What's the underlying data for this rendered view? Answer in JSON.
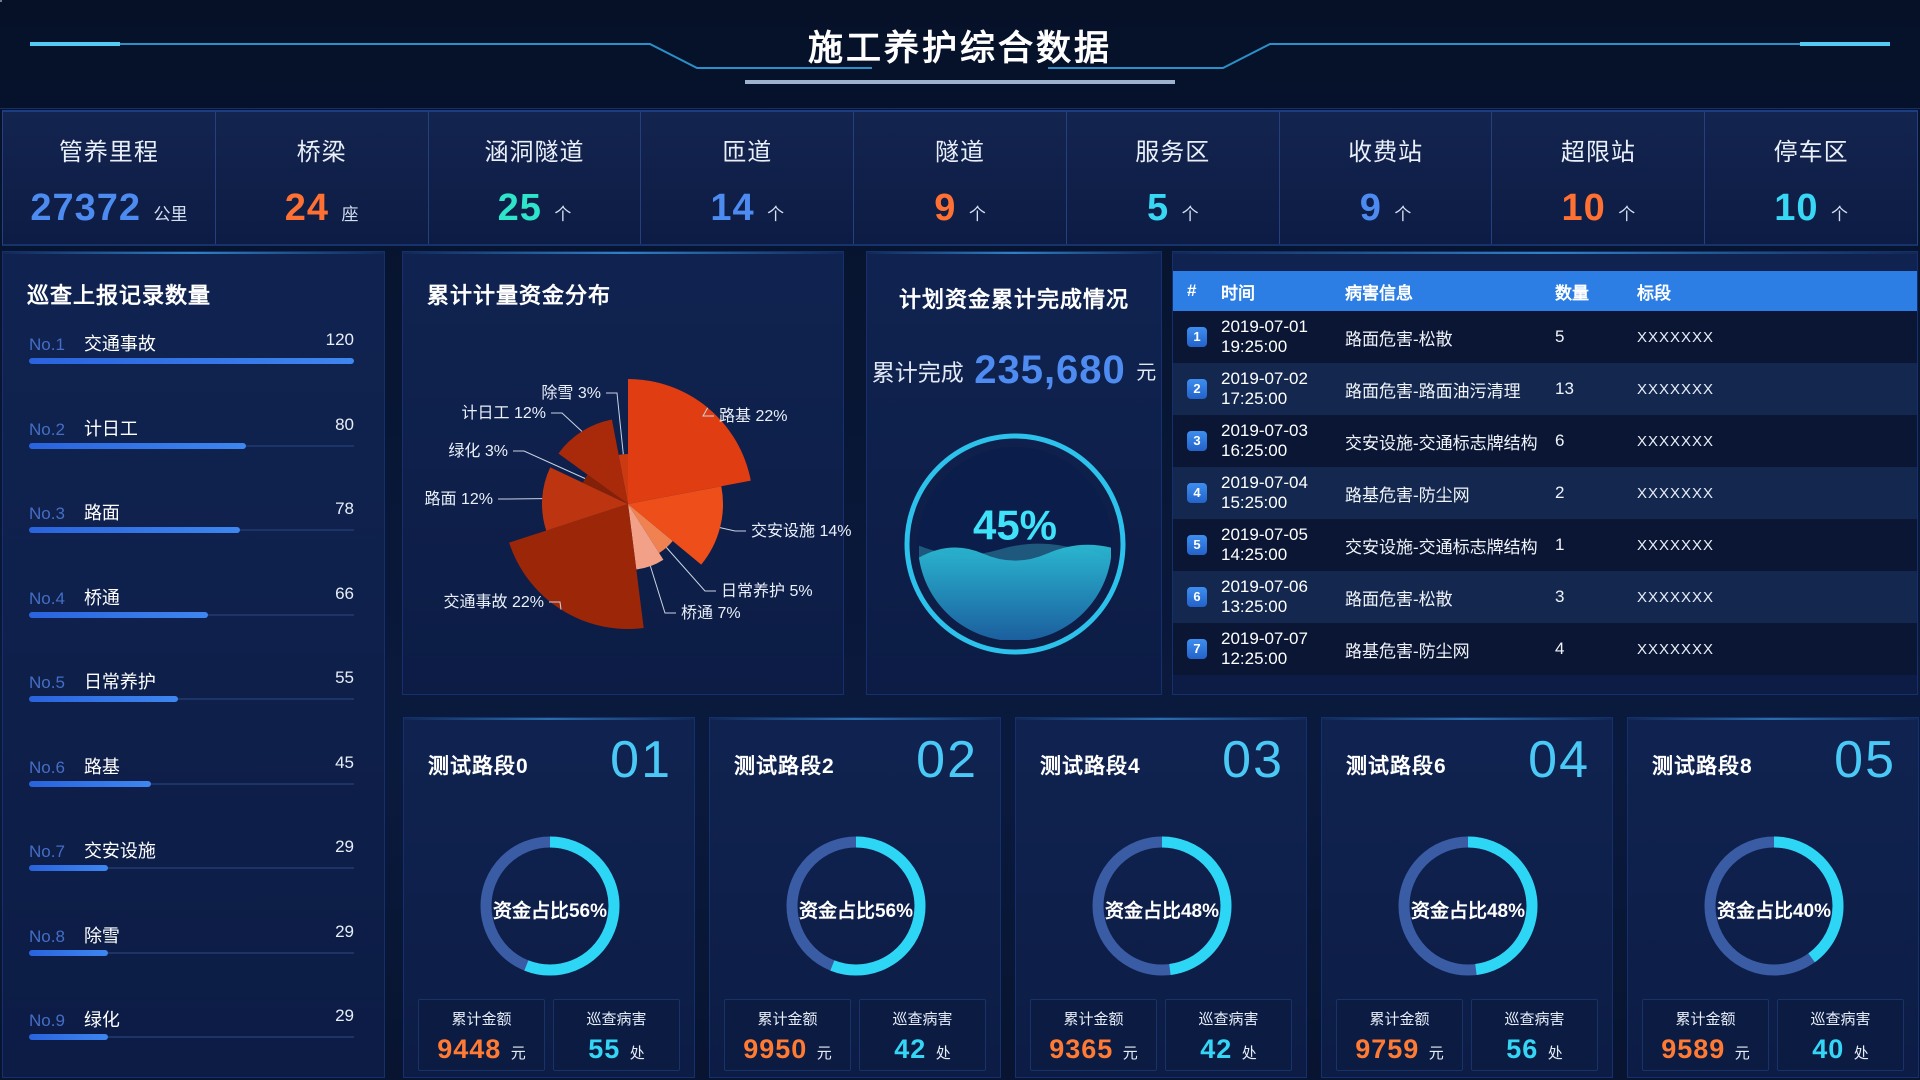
{
  "header": {
    "title": "施工养护综合数据"
  },
  "stats": [
    {
      "label": "管养里程",
      "value": "27372",
      "unit": "公里",
      "color": "#4d8bf0"
    },
    {
      "label": "桥梁",
      "value": "24",
      "unit": "座",
      "color": "#ff7033"
    },
    {
      "label": "涵洞隧道",
      "value": "25",
      "unit": "个",
      "color": "#2ee5c9"
    },
    {
      "label": "匝道",
      "value": "14",
      "unit": "个",
      "color": "#4d8bf0"
    },
    {
      "label": "隧道",
      "value": "9",
      "unit": "个",
      "color": "#ff7033"
    },
    {
      "label": "服务区",
      "value": "5",
      "unit": "个",
      "color": "#38d8f5"
    },
    {
      "label": "收费站",
      "value": "9",
      "unit": "个",
      "color": "#4d8bf0"
    },
    {
      "label": "超限站",
      "value": "10",
      "unit": "个",
      "color": "#ff7033"
    },
    {
      "label": "停车区",
      "value": "10",
      "unit": "个",
      "color": "#38d8f5"
    }
  ],
  "inspection": {
    "title": "巡查上报记录数量",
    "max": 120,
    "items": [
      {
        "rank": "No.1",
        "name": "交通事故",
        "value": 120
      },
      {
        "rank": "No.2",
        "name": "计日工",
        "value": 80
      },
      {
        "rank": "No.3",
        "name": "路面",
        "value": 78
      },
      {
        "rank": "No.4",
        "name": "桥通",
        "value": 66
      },
      {
        "rank": "No.5",
        "name": "日常养护",
        "value": 55
      },
      {
        "rank": "No.6",
        "name": "路基",
        "value": 45
      },
      {
        "rank": "No.7",
        "name": "交安设施",
        "value": 29
      },
      {
        "rank": "No.8",
        "name": "除雪",
        "value": 29
      },
      {
        "rank": "No.9",
        "name": "绿化",
        "value": 29
      }
    ]
  },
  "pie_panel": {
    "title": "累计计量资金分布"
  },
  "gauge_panel": {
    "title": "计划资金累计完成情况",
    "prefix": "累计完成",
    "amount": "235,680",
    "unit": "元",
    "percent": 45,
    "percent_label": "45%"
  },
  "table": {
    "headers": [
      "#",
      "时间",
      "病害信息",
      "数量",
      "标段"
    ],
    "rows": [
      [
        "1",
        "2019-07-01 19:25:00",
        "路面危害-松散",
        "5",
        "XXXXXXX"
      ],
      [
        "2",
        "2019-07-02 17:25:00",
        "路面危害-路面油污清理",
        "13",
        "XXXXXXX"
      ],
      [
        "3",
        "2019-07-03 16:25:00",
        "交安设施-交通标志牌结构",
        "6",
        "XXXXXXX"
      ],
      [
        "4",
        "2019-07-04 15:25:00",
        "路基危害-防尘网",
        "2",
        "XXXXXXX"
      ],
      [
        "5",
        "2019-07-05 14:25:00",
        "交安设施-交通标志牌结构",
        "1",
        "XXXXXXX"
      ],
      [
        "6",
        "2019-07-06 13:25:00",
        "路面危害-松散",
        "3",
        "XXXXXXX"
      ],
      [
        "7",
        "2019-07-07 12:25:00",
        "路基危害-防尘网",
        "4",
        "XXXXXXX"
      ]
    ]
  },
  "cards": [
    {
      "title": "测试路段0",
      "index": "01",
      "ratio_label": "资金占比56%",
      "percent": 56,
      "amount_label": "累计金额",
      "amount": "9448",
      "amount_unit": "元",
      "defect_label": "巡查病害",
      "defect": "55",
      "defect_unit": "处"
    },
    {
      "title": "测试路段2",
      "index": "02",
      "ratio_label": "资金占比56%",
      "percent": 56,
      "amount_label": "累计金额",
      "amount": "9950",
      "amount_unit": "元",
      "defect_label": "巡查病害",
      "defect": "42",
      "defect_unit": "处"
    },
    {
      "title": "测试路段4",
      "index": "03",
      "ratio_label": "资金占比48%",
      "percent": 48,
      "amount_label": "累计金额",
      "amount": "9365",
      "amount_unit": "元",
      "defect_label": "巡查病害",
      "defect": "42",
      "defect_unit": "处"
    },
    {
      "title": "测试路段6",
      "index": "04",
      "ratio_label": "资金占比48%",
      "percent": 48,
      "amount_label": "累计金额",
      "amount": "9759",
      "amount_unit": "元",
      "defect_label": "巡查病害",
      "defect": "56",
      "defect_unit": "处"
    },
    {
      "title": "测试路段8",
      "index": "05",
      "ratio_label": "资金占比40%",
      "percent": 40,
      "amount_label": "累计金额",
      "amount": "9589",
      "amount_unit": "元",
      "defect_label": "巡查病害",
      "defect": "40",
      "defect_unit": "处"
    }
  ],
  "chart_data": [
    {
      "type": "pie",
      "variant": "nightingale-rose",
      "title": "累计计量资金分布",
      "unit": "%",
      "start_angle_deg": -90,
      "clockwise": true,
      "slices": [
        {
          "name": "路基",
          "value": 22,
          "color": "#e03e12",
          "radius": 125
        },
        {
          "name": "交安设施",
          "value": 14,
          "color": "#ee4f1a",
          "radius": 95
        },
        {
          "name": "日常养护",
          "value": 5,
          "color": "#f08252",
          "radius": 58
        },
        {
          "name": "桥通",
          "value": 7,
          "color": "#f2a088",
          "radius": 66
        },
        {
          "name": "交通事故",
          "value": 22,
          "color": "#9c2608",
          "radius": 125
        },
        {
          "name": "路面",
          "value": 12,
          "color": "#bc3510",
          "radius": 86
        },
        {
          "name": "绿化",
          "value": 3,
          "color": "#832008",
          "radius": 50
        },
        {
          "name": "计日工",
          "value": 12,
          "color": "#a82a0a",
          "radius": 86
        },
        {
          "name": "除雪",
          "value": 3,
          "color": "#cc3a12",
          "radius": 50
        }
      ]
    },
    {
      "type": "gauge",
      "variant": "liquid-fill",
      "title": "计划资金累计完成情况",
      "percent": 45,
      "label": "累计完成 235,680 元"
    },
    {
      "type": "bar",
      "variant": "horizontal-rank",
      "title": "巡查上报记录数量",
      "categories": [
        "交通事故",
        "计日工",
        "路面",
        "桥通",
        "日常养护",
        "路基",
        "交安设施",
        "除雪",
        "绿化"
      ],
      "values": [
        120,
        80,
        78,
        66,
        55,
        45,
        29,
        29,
        29
      ],
      "xlim": [
        0,
        120
      ]
    },
    {
      "type": "donut",
      "title": "测试路段资金占比",
      "categories": [
        "测试路段0",
        "测试路段2",
        "测试路段4",
        "测试路段6",
        "测试路段8"
      ],
      "series": [
        {
          "name": "资金占比%",
          "values": [
            56,
            56,
            48,
            48,
            40
          ]
        },
        {
          "name": "累计金额(元)",
          "values": [
            9448,
            9950,
            9365,
            9759,
            9589
          ]
        },
        {
          "name": "巡查病害(处)",
          "values": [
            55,
            42,
            42,
            56,
            40
          ]
        }
      ]
    }
  ]
}
